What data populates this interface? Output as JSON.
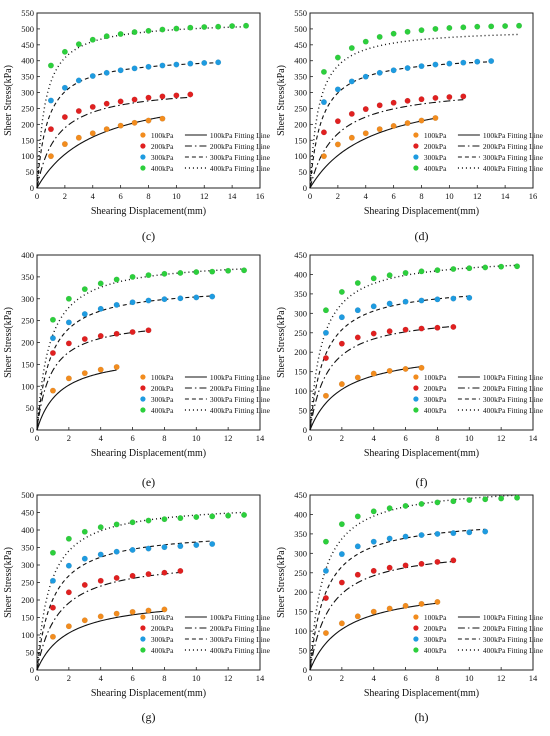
{
  "legend": {
    "point_labels": [
      "100kPa",
      "200kPa",
      "300kPa",
      "400kPa"
    ],
    "line_labels": [
      "100kPa Fitting Line",
      "200kPa Fitting Line",
      "300kPa Fitting Line",
      "400kPa Fitting Line"
    ],
    "placement": "bottom-right"
  },
  "colors": {
    "100kPa": "#f28c1e",
    "200kPa": "#e02020",
    "300kPa": "#1e9be0",
    "400kPa": "#2ccf3c",
    "line": "#111111"
  },
  "line_styles": [
    "solid",
    "dash-dot",
    "dash",
    "dot"
  ],
  "chart_data": [
    {
      "type": "scatter",
      "panel_label": "(c)",
      "xlabel": "Shearing Displacement(mm)",
      "ylabel": "Sheer Stress(kPa)",
      "xlim": [
        0,
        16
      ],
      "ylim": [
        0,
        550
      ],
      "xticks": [
        0,
        2,
        4,
        6,
        8,
        10,
        12,
        14,
        16
      ],
      "yticks": [
        0,
        50,
        100,
        150,
        200,
        250,
        300,
        350,
        400,
        450,
        500,
        550
      ],
      "series": [
        {
          "name": "100kPa",
          "x": [
            1,
            2,
            3,
            4,
            5,
            6,
            7,
            8,
            9
          ],
          "y": [
            100,
            138,
            158,
            172,
            185,
            196,
            205,
            212,
            218
          ]
        },
        {
          "name": "200kPa",
          "x": [
            1,
            2,
            3,
            4,
            5,
            6,
            7,
            8,
            9,
            10,
            11
          ],
          "y": [
            185,
            223,
            242,
            255,
            265,
            272,
            278,
            284,
            288,
            291,
            294
          ]
        },
        {
          "name": "300kPa",
          "x": [
            1,
            2,
            3,
            4,
            5,
            6,
            7,
            8,
            9,
            10,
            11,
            12,
            13
          ],
          "y": [
            275,
            315,
            338,
            352,
            362,
            370,
            376,
            381,
            385,
            388,
            391,
            393,
            395
          ]
        },
        {
          "name": "400kPa",
          "x": [
            1,
            2,
            3,
            4,
            5,
            6,
            7,
            8,
            9,
            10,
            11,
            12,
            13,
            14,
            15
          ],
          "y": [
            385,
            428,
            452,
            466,
            477,
            484,
            490,
            494,
            498,
            501,
            504,
            506,
            507,
            509,
            510
          ]
        }
      ],
      "fit": [
        {
          "name": "100kPa Fitting Line",
          "a": 0.0128,
          "b": 0.00305,
          "xmax": 9
        },
        {
          "name": "200kPa Fitting Line",
          "a": 0.00436,
          "b": 0.00311,
          "xmax": 11
        },
        {
          "name": "300kPa Fitting Line",
          "a": 0.00181,
          "b": 0.0024,
          "xmax": 13
        },
        {
          "name": "400kPa Fitting Line",
          "a": 0.00109,
          "b": 0.0019,
          "xmax": 15
        }
      ]
    },
    {
      "type": "scatter",
      "panel_label": "(d)",
      "xlabel": "Shearing Displacement(mm)",
      "ylabel": "Sheer Stress(kPa)",
      "xlim": [
        0,
        16
      ],
      "ylim": [
        0,
        550
      ],
      "xticks": [
        0,
        2,
        4,
        6,
        8,
        10,
        12,
        14,
        16
      ],
      "yticks": [
        0,
        50,
        100,
        150,
        200,
        250,
        300,
        350,
        400,
        450,
        500,
        550
      ],
      "series": [
        {
          "name": "100kPa",
          "x": [
            1,
            2,
            3,
            4,
            5,
            6,
            7,
            8,
            9
          ],
          "y": [
            100,
            137,
            158,
            172,
            185,
            195,
            204,
            212,
            220
          ]
        },
        {
          "name": "200kPa",
          "x": [
            1,
            2,
            3,
            4,
            5,
            6,
            7,
            8,
            9,
            10,
            11
          ],
          "y": [
            175,
            210,
            233,
            248,
            260,
            268,
            274,
            279,
            283,
            286,
            288
          ]
        },
        {
          "name": "300kPa",
          "x": [
            1,
            2,
            3,
            4,
            5,
            6,
            7,
            8,
            9,
            10,
            11,
            12,
            13
          ],
          "y": [
            270,
            310,
            335,
            350,
            362,
            370,
            377,
            383,
            388,
            391,
            394,
            397,
            399
          ]
        },
        {
          "name": "400kPa",
          "x": [
            1,
            2,
            3,
            4,
            5,
            6,
            7,
            8,
            9,
            10,
            11,
            12,
            13,
            14,
            15
          ],
          "y": [
            365,
            410,
            440,
            460,
            475,
            485,
            491,
            496,
            500,
            503,
            505,
            507,
            508,
            509,
            510
          ]
        }
      ],
      "fit": [
        {
          "name": "100kPa Fitting Line",
          "a": 0.0134,
          "b": 0.00307,
          "xmax": 9
        },
        {
          "name": "200kPa Fitting Line",
          "a": 0.00552,
          "b": 0.0031,
          "xmax": 11
        },
        {
          "name": "300kPa Fitting Line",
          "a": 0.00195,
          "b": 0.00237,
          "xmax": 13
        },
        {
          "name": "400kPa Fitting Line",
          "a": 0.00123,
          "b": 0.00199,
          "xmax": 15
        }
      ]
    },
    {
      "type": "scatter",
      "panel_label": "(e)",
      "xlabel": "Shearing Displacement(mm)",
      "ylabel": "Sheer Stress(kPa)",
      "xlim": [
        0,
        14
      ],
      "ylim": [
        0,
        400
      ],
      "xticks": [
        0,
        2,
        4,
        6,
        8,
        10,
        12,
        14
      ],
      "yticks": [
        0,
        50,
        100,
        150,
        200,
        250,
        300,
        350,
        400
      ],
      "series": [
        {
          "name": "100kPa",
          "x": [
            1,
            2,
            3,
            4,
            5
          ],
          "y": [
            90,
            118,
            130,
            138,
            144
          ]
        },
        {
          "name": "200kPa",
          "x": [
            1,
            2,
            3,
            4,
            5,
            6,
            7
          ],
          "y": [
            176,
            198,
            208,
            215,
            220,
            224,
            228
          ]
        },
        {
          "name": "300kPa",
          "x": [
            1,
            2,
            3,
            4,
            5,
            6,
            7,
            8,
            9,
            10,
            11
          ],
          "y": [
            210,
            246,
            265,
            277,
            286,
            292,
            296,
            299,
            301,
            303,
            305
          ]
        },
        {
          "name": "400kPa",
          "x": [
            1,
            2,
            3,
            4,
            5,
            6,
            7,
            8,
            9,
            10,
            11,
            12,
            13
          ],
          "y": [
            252,
            300,
            322,
            335,
            344,
            350,
            354,
            357,
            359,
            361,
            362,
            364,
            365
          ]
        }
      ],
      "fit": [
        {
          "name": "100kPa Fitting Line",
          "a": 0.00817,
          "b": 0.00566,
          "xmax": 5
        },
        {
          "name": "200kPa Fitting Line",
          "a": 0.00341,
          "b": 0.00392,
          "xmax": 7
        },
        {
          "name": "300kPa Fitting Line",
          "a": 0.00257,
          "b": 0.00303,
          "xmax": 11
        },
        {
          "name": "400kPa Fitting Line",
          "a": 0.00202,
          "b": 0.00256,
          "xmax": 13
        }
      ]
    },
    {
      "type": "scatter",
      "panel_label": "(f)",
      "xlabel": "Shearing Displacement(mm)",
      "ylabel": "Sheer Stress(kPa)",
      "xlim": [
        0,
        14
      ],
      "ylim": [
        0,
        450
      ],
      "xticks": [
        0,
        2,
        4,
        6,
        8,
        10,
        12,
        14
      ],
      "yticks": [
        0,
        50,
        100,
        150,
        200,
        250,
        300,
        350,
        400,
        450
      ],
      "series": [
        {
          "name": "100kPa",
          "x": [
            1,
            2,
            3,
            4,
            5,
            6,
            7
          ],
          "y": [
            88,
            118,
            135,
            145,
            152,
            157,
            160
          ]
        },
        {
          "name": "200kPa",
          "x": [
            1,
            2,
            3,
            4,
            5,
            6,
            7,
            8,
            9
          ],
          "y": [
            185,
            222,
            238,
            248,
            254,
            258,
            261,
            263,
            265
          ]
        },
        {
          "name": "300kPa",
          "x": [
            1,
            2,
            3,
            4,
            5,
            6,
            7,
            8,
            9,
            10
          ],
          "y": [
            250,
            290,
            308,
            318,
            325,
            330,
            333,
            336,
            338,
            340
          ]
        },
        {
          "name": "400kPa",
          "x": [
            1,
            2,
            3,
            4,
            5,
            6,
            7,
            8,
            9,
            10,
            11,
            12,
            13
          ],
          "y": [
            308,
            355,
            378,
            390,
            398,
            404,
            408,
            411,
            414,
            416,
            418,
            420,
            421
          ]
        }
      ],
      "fit": [
        {
          "name": "100kPa Fitting Line",
          "a": 0.00967,
          "b": 0.00475,
          "xmax": 7
        },
        {
          "name": "200kPa Fitting Line",
          "a": 0.00373,
          "b": 0.00334,
          "xmax": 9
        },
        {
          "name": "300kPa Fitting Line",
          "a": 0.00244,
          "b": 0.00266,
          "xmax": 10
        },
        {
          "name": "400kPa Fitting Line",
          "a": 0.0017,
          "b": 0.00223,
          "xmax": 13
        }
      ]
    },
    {
      "type": "scatter",
      "panel_label": "(g)",
      "xlabel": "Shearing Displacement(mm)",
      "ylabel": "Sheer Stress(kPa)",
      "xlim": [
        0,
        14
      ],
      "ylim": [
        0,
        500
      ],
      "xticks": [
        0,
        2,
        4,
        6,
        8,
        10,
        12,
        14
      ],
      "yticks": [
        0,
        50,
        100,
        150,
        200,
        250,
        300,
        350,
        400,
        450,
        500
      ],
      "series": [
        {
          "name": "100kPa",
          "x": [
            1,
            2,
            3,
            4,
            5,
            6,
            7,
            8
          ],
          "y": [
            95,
            125,
            142,
            153,
            161,
            166,
            170,
            173
          ]
        },
        {
          "name": "200kPa",
          "x": [
            1,
            2,
            3,
            4,
            5,
            6,
            7,
            8,
            9
          ],
          "y": [
            178,
            222,
            243,
            255,
            263,
            269,
            274,
            278,
            283
          ]
        },
        {
          "name": "300kPa",
          "x": [
            1,
            2,
            3,
            4,
            5,
            6,
            7,
            8,
            9,
            10,
            11
          ],
          "y": [
            255,
            298,
            318,
            330,
            338,
            343,
            347,
            351,
            354,
            357,
            360
          ]
        },
        {
          "name": "400kPa",
          "x": [
            1,
            2,
            3,
            4,
            5,
            6,
            7,
            8,
            9,
            10,
            11,
            12,
            13
          ],
          "y": [
            335,
            375,
            395,
            408,
            416,
            422,
            427,
            431,
            434,
            437,
            439,
            441,
            443
          ]
        }
      ],
      "fit": [
        {
          "name": "100kPa Fitting Line",
          "a": 0.00939,
          "b": 0.00478,
          "xmax": 8
        },
        {
          "name": "200kPa Fitting Line",
          "a": 0.0042,
          "b": 0.00312,
          "xmax": 9
        },
        {
          "name": "300kPa Fitting Line",
          "a": 0.00245,
          "b": 0.00249,
          "xmax": 11
        },
        {
          "name": "400kPa Fitting Line",
          "a": 0.0017,
          "b": 0.00209,
          "xmax": 13
        }
      ]
    },
    {
      "type": "scatter",
      "panel_label": "(h)",
      "xlabel": "Shearing Displacement(mm)",
      "ylabel": "Sheer Stress(kPa)",
      "xlim": [
        0,
        14
      ],
      "ylim": [
        0,
        450
      ],
      "xticks": [
        0,
        2,
        4,
        6,
        8,
        10,
        12,
        14
      ],
      "yticks": [
        0,
        50,
        100,
        150,
        200,
        250,
        300,
        350,
        400,
        450
      ],
      "series": [
        {
          "name": "100kPa",
          "x": [
            1,
            2,
            3,
            4,
            5,
            6,
            7,
            8
          ],
          "y": [
            95,
            120,
            138,
            150,
            158,
            165,
            170,
            175
          ]
        },
        {
          "name": "200kPa",
          "x": [
            1,
            2,
            3,
            4,
            5,
            6,
            7,
            8,
            9
          ],
          "y": [
            185,
            225,
            245,
            255,
            263,
            269,
            273,
            278,
            282
          ]
        },
        {
          "name": "300kPa",
          "x": [
            1,
            2,
            3,
            4,
            5,
            6,
            7,
            8,
            9,
            10,
            11
          ],
          "y": [
            255,
            298,
            318,
            330,
            338,
            343,
            347,
            350,
            352,
            354,
            356
          ]
        },
        {
          "name": "400kPa",
          "x": [
            1,
            2,
            3,
            4,
            5,
            6,
            7,
            8,
            9,
            10,
            11,
            12,
            13
          ],
          "y": [
            330,
            375,
            395,
            408,
            416,
            422,
            427,
            431,
            434,
            437,
            439,
            441,
            443
          ]
        }
      ],
      "fit": [
        {
          "name": "100kPa Fitting Line",
          "a": 0.00993,
          "b": 0.00458,
          "xmax": 8
        },
        {
          "name": "200kPa Fitting Line",
          "a": 0.0039,
          "b": 0.00315,
          "xmax": 9
        },
        {
          "name": "300kPa Fitting Line",
          "a": 0.00245,
          "b": 0.00254,
          "xmax": 11
        },
        {
          "name": "400kPa Fitting Line",
          "a": 0.00175,
          "b": 0.00209,
          "xmax": 13
        }
      ]
    }
  ]
}
